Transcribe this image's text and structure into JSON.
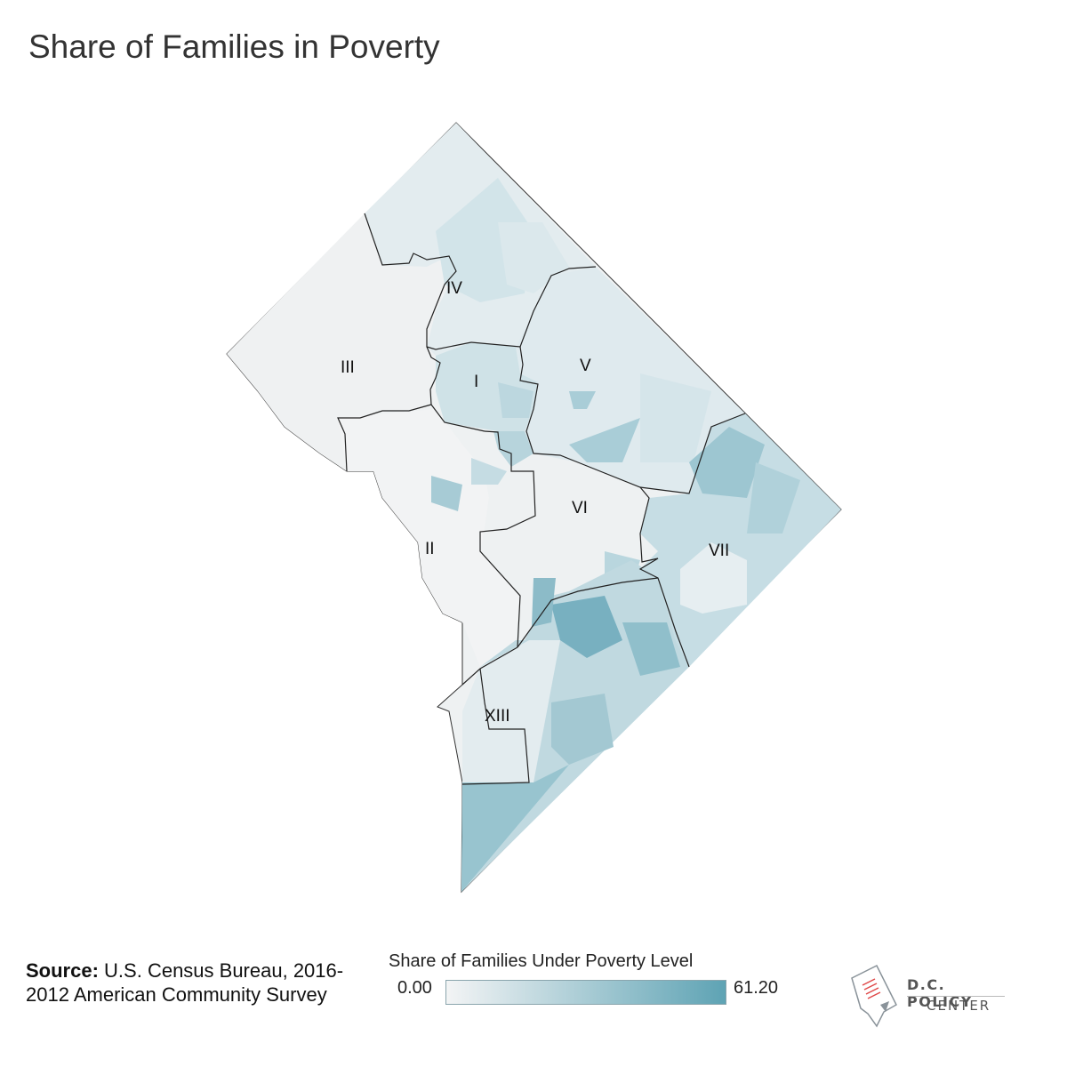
{
  "title": "Share of Families in Poverty",
  "wards": [
    {
      "label": "IV"
    },
    {
      "label": "III"
    },
    {
      "label": "I"
    },
    {
      "label": "V"
    },
    {
      "label": "VI"
    },
    {
      "label": "II"
    },
    {
      "label": "VII"
    },
    {
      "label": "XIII"
    }
  ],
  "source": {
    "prefix": "Source:",
    "text": "U.S. Census Bureau, 2016-2012 American Community Survey"
  },
  "legend": {
    "title": "Share of Families Under Poverty Level",
    "min": "0.00",
    "max": "61.20",
    "color_low": "#f3f4f5",
    "color_high": "#5ea3b4"
  },
  "logo": {
    "line1": "D.C. POLICY",
    "line2": "CENTER",
    "icon": "dc-map-document-icon"
  }
}
